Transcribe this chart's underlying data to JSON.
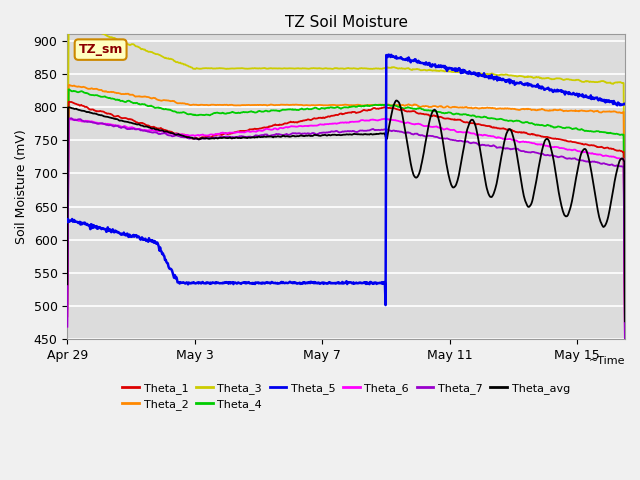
{
  "title": "TZ Soil Moisture",
  "ylabel": "Soil Moisture (mV)",
  "xlabel": "Time",
  "ylim": [
    450,
    910
  ],
  "figure_bg": "#f0f0f0",
  "plot_bg": "#dcdcdc",
  "legend_label": "TZ_sm",
  "x_tick_labels": [
    "Apr 29",
    "May 3",
    "May 7",
    "May 11",
    "May 15"
  ],
  "x_tick_pos": [
    0,
    4,
    8,
    12,
    16
  ],
  "y_ticks": [
    450,
    500,
    550,
    600,
    650,
    700,
    750,
    800,
    850,
    900
  ],
  "event_x": 10,
  "series": {
    "Theta_1": {
      "color": "#dd0000"
    },
    "Theta_2": {
      "color": "#ff8800"
    },
    "Theta_3": {
      "color": "#cccc00"
    },
    "Theta_4": {
      "color": "#00cc00"
    },
    "Theta_5": {
      "color": "#0000ee"
    },
    "Theta_6": {
      "color": "#ff00ff"
    },
    "Theta_7": {
      "color": "#9900cc"
    },
    "Theta_avg": {
      "color": "#000000"
    }
  }
}
